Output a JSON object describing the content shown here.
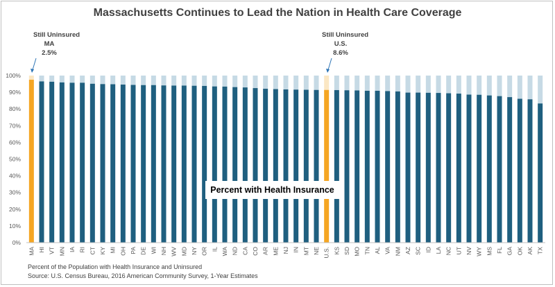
{
  "title": "Massachusetts Continues to Lead the Nation in Health Care Coverage",
  "annotations": {
    "ma": {
      "line1": "Still Uninsured",
      "line2": "MA",
      "line3": "2.5%"
    },
    "us": {
      "line1": "Still Uninsured",
      "line2": "U.S.",
      "line3": "8.6%"
    }
  },
  "center_label": "Percent with Health Insurance",
  "footnote": "Percent of the Population with Health Insurance and Uninsured",
  "source": "Source: U.S. Census Bureau, 2016 American Community Survey, 1-Year Estimates",
  "colors": {
    "insured": "#1f5f7f",
    "uninsured": "#c6dae5",
    "highlight": "#f5a623",
    "highlight_light": "#fbe7c4"
  },
  "chart_data": {
    "type": "bar",
    "stacked": true,
    "ylim": [
      0,
      100
    ],
    "yticks": [
      "0%",
      "10%",
      "20%",
      "30%",
      "40%",
      "50%",
      "60%",
      "70%",
      "80%",
      "90%",
      "100%"
    ],
    "categories": [
      "MA",
      "HI",
      "VT",
      "MN",
      "IA",
      "RI",
      "CT",
      "KY",
      "MI",
      "OH",
      "PA",
      "DE",
      "WI",
      "NH",
      "WV",
      "MD",
      "NY",
      "OR",
      "IL",
      "WA",
      "ND",
      "CA",
      "CO",
      "AR",
      "ME",
      "NJ",
      "IN",
      "MT",
      "NE",
      "U.S.",
      "KS",
      "SD",
      "MO",
      "TN",
      "AL",
      "VA",
      "NM",
      "AZ",
      "SC",
      "ID",
      "LA",
      "NC",
      "UT",
      "NV",
      "WY",
      "MS",
      "FL",
      "GA",
      "OK",
      "AK",
      "TX"
    ],
    "series": [
      {
        "name": "Percent with Health Insurance",
        "values": [
          97.5,
          96.5,
          96.3,
          95.9,
          95.7,
          95.7,
          95.1,
          94.9,
          94.8,
          94.6,
          94.4,
          94.3,
          94.3,
          94.1,
          94.0,
          94.0,
          93.9,
          93.8,
          93.5,
          93.4,
          93.1,
          92.9,
          92.5,
          92.1,
          91.9,
          91.7,
          91.6,
          91.5,
          91.4,
          91.4,
          91.3,
          91.2,
          91.1,
          90.9,
          90.9,
          90.7,
          90.5,
          89.8,
          89.8,
          89.7,
          89.6,
          89.4,
          89.2,
          88.6,
          88.5,
          88.1,
          87.7,
          87.1,
          86.1,
          85.8,
          83.3
        ]
      },
      {
        "name": "Uninsured",
        "values": [
          2.5,
          3.5,
          3.7,
          4.1,
          4.3,
          4.3,
          4.9,
          5.1,
          5.2,
          5.4,
          5.6,
          5.7,
          5.7,
          5.9,
          6.0,
          6.0,
          6.1,
          6.2,
          6.5,
          6.6,
          6.9,
          7.1,
          7.5,
          7.9,
          8.1,
          8.3,
          8.4,
          8.5,
          8.6,
          8.6,
          8.7,
          8.8,
          8.9,
          9.1,
          9.1,
          9.3,
          9.5,
          10.2,
          10.2,
          10.3,
          10.4,
          10.6,
          10.8,
          11.4,
          11.5,
          11.9,
          12.3,
          12.9,
          13.9,
          14.2,
          16.7
        ]
      }
    ],
    "highlight": [
      "MA",
      "U.S."
    ]
  }
}
